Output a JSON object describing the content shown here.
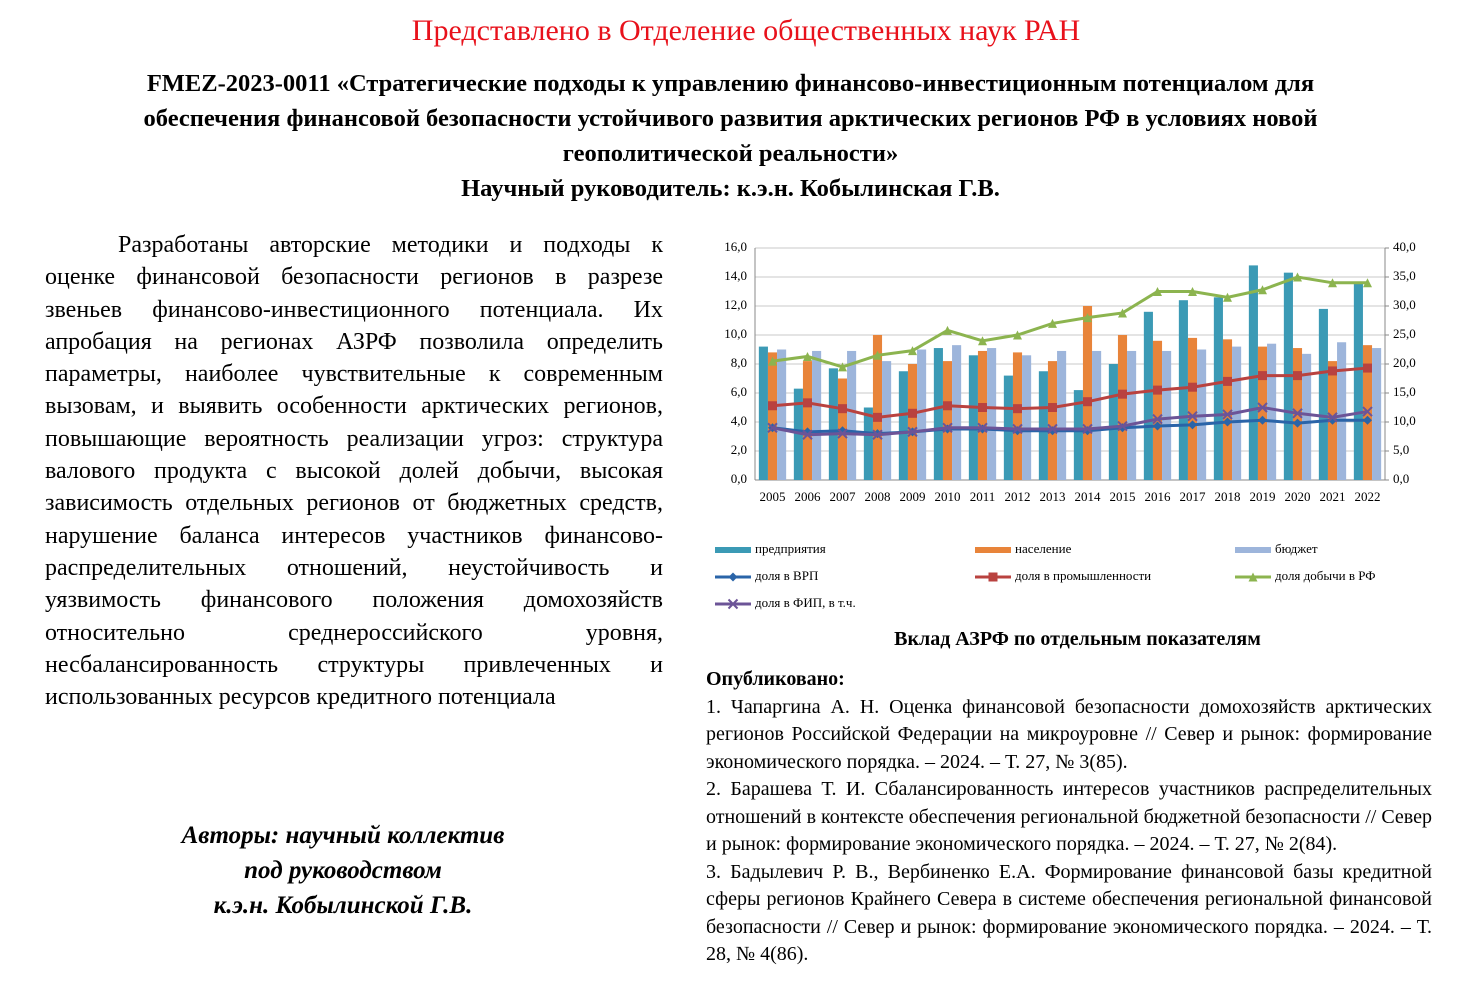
{
  "header": {
    "presented": "Представлено в Отделение общественных наук РАН",
    "title_lines": [
      "FMEZ-2023-0011 «Стратегические подходы к управлению финансово-инвестиционным потенциалом для",
      "обеспечения финансовой безопасности устойчивого развития арктических регионов РФ в условиях новой",
      "геополитической реальности»"
    ],
    "supervisor": "Научный руководитель: к.э.н. Кобылинская Г.В."
  },
  "body": {
    "paragraph": "Разработаны авторские методики и подходы к оценке финансовой безопасности регионов в разрезе звеньев финансово-инвестиционного потенциала. Их апробация на регионах АЗРФ позволила определить параметры, наиболее чувствительные к современным вызовам, и выявить особенности арктических регионов, повышающие вероятность реализации угроз: структура валового продукта с высокой долей добычи, высокая зависимость отдельных регионов от бюджетных средств, нарушение баланса интересов участников финансово-распределительных отношений, неустойчивость и уязвимость финансового положения домохозяйств относительно среднероссийского уровня, несбалансированность структуры привлеченных и использованных ресурсов кредитного потенциала",
    "authors": [
      "Авторы: научный коллектив",
      "под руководством",
      "к.э.н. Кобылинской Г.В."
    ]
  },
  "chart_data": {
    "type": "combo",
    "title": "Вклад АЗРФ по отдельным показателям",
    "categories": [
      "2005",
      "2006",
      "2007",
      "2008",
      "2009",
      "2010",
      "2011",
      "2012",
      "2013",
      "2014",
      "2015",
      "2016",
      "2017",
      "2018",
      "2019",
      "2020",
      "2021",
      "2022"
    ],
    "ylim": [
      0,
      16
    ],
    "yticks": [
      {
        "value": 0,
        "label": "0,0"
      },
      {
        "value": 2,
        "label": "2,0"
      },
      {
        "value": 4,
        "label": "4,0"
      },
      {
        "value": 6,
        "label": "6,0"
      },
      {
        "value": 8,
        "label": "8,0"
      },
      {
        "value": 10,
        "label": "10,0"
      },
      {
        "value": 12,
        "label": "12,0"
      },
      {
        "value": 14,
        "label": "14,0"
      },
      {
        "value": 16,
        "label": "16,0"
      }
    ],
    "y2lim": [
      0,
      40
    ],
    "y2ticks": [
      {
        "value": 0,
        "label": "0,0"
      },
      {
        "value": 5,
        "label": "5,0"
      },
      {
        "value": 10,
        "label": "10,0"
      },
      {
        "value": 15,
        "label": "15,0"
      },
      {
        "value": 20,
        "label": "20,0"
      },
      {
        "value": 25,
        "label": "25,0"
      },
      {
        "value": 30,
        "label": "30,0"
      },
      {
        "value": 35,
        "label": "35,0"
      },
      {
        "value": 40,
        "label": "40,0"
      }
    ],
    "grid": true,
    "series": [
      {
        "name": "предприятия",
        "color": "#3b9ab5",
        "kind": "bar",
        "values": [
          9.2,
          6.3,
          7.7,
          5.0,
          7.5,
          9.1,
          8.6,
          7.2,
          7.5,
          6.2,
          8.0,
          11.6,
          12.4,
          12.6,
          14.8,
          14.3,
          11.8,
          13.6
        ]
      },
      {
        "name": "население",
        "color": "#e8843a",
        "kind": "bar",
        "values": [
          8.8,
          8.2,
          7.0,
          10.0,
          8.0,
          8.2,
          8.9,
          8.8,
          8.2,
          12.0,
          10.0,
          9.6,
          9.8,
          9.7,
          9.2,
          9.1,
          8.2,
          9.3
        ]
      },
      {
        "name": "бюджет",
        "color": "#9db5db",
        "kind": "bar",
        "values": [
          9.0,
          8.9,
          8.9,
          8.2,
          9.0,
          9.3,
          9.1,
          8.6,
          8.9,
          8.9,
          8.9,
          8.9,
          9.0,
          9.2,
          9.4,
          8.7,
          9.5,
          9.1
        ]
      },
      {
        "name": "доля в ВРП",
        "color": "#2a64a8",
        "kind": "line",
        "marker": "diamond",
        "axis": "y2",
        "values": [
          9.0,
          8.3,
          8.5,
          8.0,
          8.3,
          8.8,
          8.8,
          8.5,
          8.5,
          8.5,
          9.0,
          9.3,
          9.5,
          10.0,
          10.3,
          9.8,
          10.3,
          10.3
        ]
      },
      {
        "name": "доля в промышленности",
        "color": "#b9423f",
        "kind": "line",
        "marker": "square",
        "axis": "y2",
        "values": [
          12.8,
          13.3,
          12.3,
          10.8,
          11.5,
          12.8,
          12.5,
          12.3,
          12.5,
          13.5,
          14.8,
          15.5,
          16.0,
          17.0,
          18.0,
          18.0,
          18.8,
          19.3
        ]
      },
      {
        "name": "доля добычи в РФ",
        "color": "#8cb44f",
        "kind": "line",
        "marker": "triangle",
        "axis": "y2",
        "values": [
          20.5,
          21.3,
          19.5,
          21.5,
          22.3,
          25.8,
          24.0,
          25.0,
          27.0,
          28.0,
          28.8,
          32.5,
          32.5,
          31.5,
          32.8,
          35.0,
          34.0,
          34.0
        ]
      },
      {
        "name": "доля в ФИП, в т.ч.",
        "color": "#6c5497",
        "kind": "line",
        "marker": "x",
        "axis": "y2",
        "values": [
          9.0,
          7.8,
          8.0,
          7.8,
          8.3,
          9.0,
          9.0,
          8.8,
          8.8,
          8.8,
          9.3,
          10.5,
          11.0,
          11.3,
          12.5,
          11.5,
          10.8,
          11.8
        ]
      }
    ]
  },
  "publications": {
    "heading": "Опубликовано:",
    "items": [
      "1. Чапаргина А. Н. Оценка финансовой безопасности домохозяйств арктических регионов Российской Федерации на микроуровне // Север и рынок: формирование экономического порядка. – 2024. – Т. 27, № 3(85).",
      "2. Барашева Т. И. Сбалансированность интересов участников распределительных отношений в контексте обеспечения региональной бюджетной безопасности // Север и рынок: формирование экономического порядка. – 2024. – Т. 27, № 2(84).",
      "3. Бадылевич Р. В., Вербиненко Е.А. Формирование финансовой базы кредитной сферы регионов Крайнего Севера в системе обеспечения региональной финансовой безопасности // Север и рынок: формирование экономического порядка. – 2024. – Т. 28, № 4(86)."
    ]
  }
}
